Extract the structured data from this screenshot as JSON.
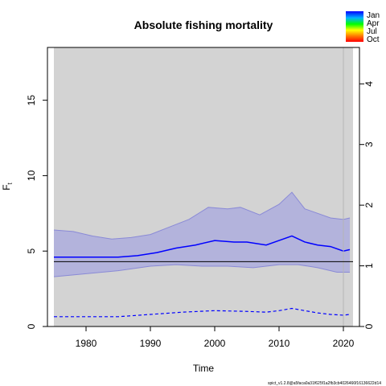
{
  "chart_data": {
    "type": "line",
    "title": "Absolute fishing mortality",
    "xlabel": "Time",
    "ylabel": "F",
    "ylabel_subscript": "t",
    "xlim": [
      1974,
      2022.5
    ],
    "ylim": [
      0,
      18.5
    ],
    "x_ticks": [
      1980,
      1990,
      2000,
      2010,
      2020
    ],
    "y_ticks": [
      0,
      5,
      10,
      15
    ],
    "right_axis": {
      "ticks": [
        0,
        1,
        2,
        3,
        4
      ],
      "ylim": [
        0,
        4.6
      ]
    },
    "grid": false,
    "legend": {
      "position": "top-right",
      "entries": [
        "Jan",
        "Apr",
        "Jul",
        "Oct"
      ]
    },
    "colors": {
      "background": "#d3d3d3",
      "band": "#b3b3dc",
      "band_edge": "#8a8ad6",
      "mean": "#0000ff",
      "reference": "#000000",
      "year_marker": "#b4b4b4"
    },
    "reference_line": 4.3,
    "year_marker": 2020,
    "series": [
      {
        "role": "upper",
        "x": [
          1975,
          1978,
          1981,
          1984,
          1987,
          1990,
          1993,
          1996,
          1999,
          2002,
          2004,
          2007,
          2010,
          2012,
          2014,
          2016,
          2018,
          2020,
          2021
        ],
        "values": [
          6.4,
          6.3,
          6.0,
          5.8,
          5.9,
          6.1,
          6.6,
          7.1,
          7.9,
          7.8,
          7.9,
          7.4,
          8.1,
          8.9,
          7.8,
          7.5,
          7.2,
          7.1,
          7.2
        ]
      },
      {
        "role": "mean",
        "x": [
          1975,
          1980,
          1985,
          1988,
          1991,
          1994,
          1997,
          2000,
          2003,
          2005,
          2008,
          2010,
          2012,
          2014,
          2016,
          2018,
          2020,
          2021
        ],
        "values": [
          4.6,
          4.6,
          4.6,
          4.7,
          4.9,
          5.2,
          5.4,
          5.7,
          5.6,
          5.6,
          5.4,
          5.7,
          6.0,
          5.6,
          5.4,
          5.3,
          5.0,
          5.1
        ]
      },
      {
        "role": "lower",
        "x": [
          1975,
          1980,
          1985,
          1990,
          1994,
          1998,
          2002,
          2006,
          2010,
          2013,
          2016,
          2019,
          2021
        ],
        "values": [
          3.3,
          3.5,
          3.7,
          4.0,
          4.1,
          4.0,
          4.0,
          3.9,
          4.1,
          4.1,
          3.9,
          3.6,
          3.6
        ]
      },
      {
        "role": "lower-dashed",
        "x": [
          1975,
          1980,
          1985,
          1990,
          1995,
          2000,
          2005,
          2008,
          2010,
          2012,
          2014,
          2016,
          2018,
          2020,
          2021
        ],
        "values": [
          0.65,
          0.65,
          0.65,
          0.8,
          0.95,
          1.05,
          1.0,
          0.95,
          1.05,
          1.2,
          1.05,
          0.9,
          0.8,
          0.75,
          0.8
        ]
      }
    ],
    "footer": "spict_v1.2.8@a5faca0a31f625f1a2fb3cb4026466f16136622d14"
  }
}
